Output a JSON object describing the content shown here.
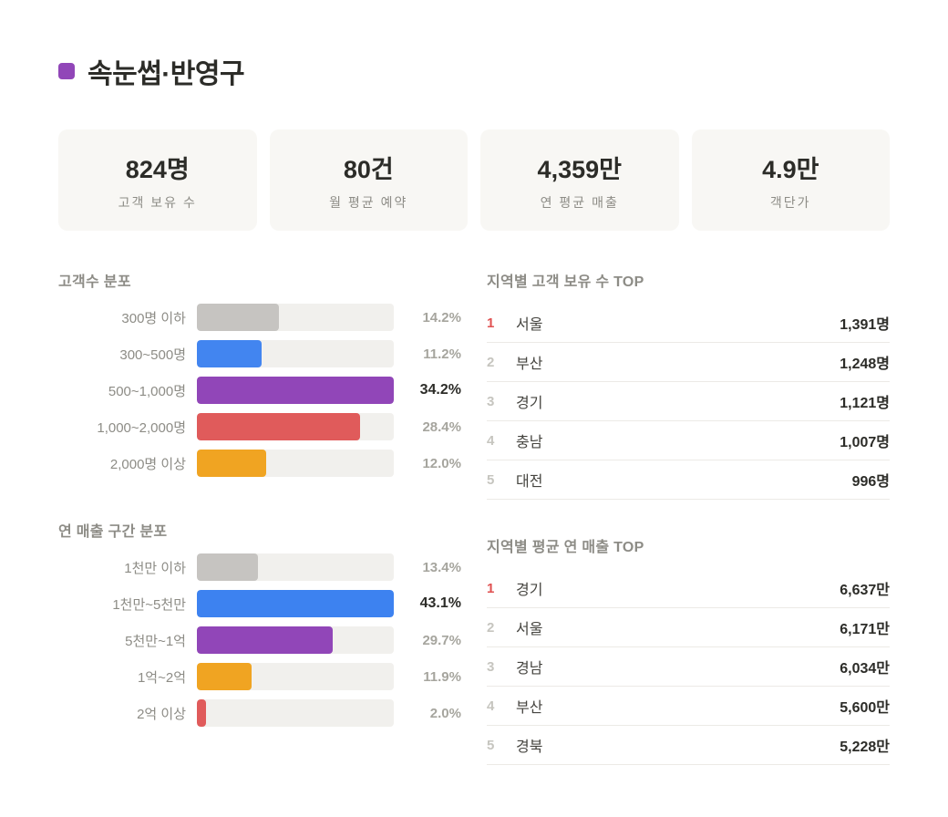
{
  "accent_color": "#9146b8",
  "header": {
    "title": "속눈썹·반영구"
  },
  "stats": [
    {
      "value": "824명",
      "label": "고객 보유 수"
    },
    {
      "value": "80건",
      "label": "월 평균 예약"
    },
    {
      "value": "4,359만",
      "label": "연 평균 매출"
    },
    {
      "value": "4.9만",
      "label": "객단가"
    }
  ],
  "chart_data": [
    {
      "type": "bar",
      "orientation": "horizontal",
      "title": "고객수 분포",
      "categories": [
        "300명 이하",
        "300~500명",
        "500~1,000명",
        "1,000~2,000명",
        "2,000명 이상"
      ],
      "values": [
        14.2,
        11.2,
        34.2,
        28.4,
        12.0
      ],
      "value_labels": [
        "14.2%",
        "11.2%",
        "34.2%",
        "28.4%",
        "12.0%"
      ],
      "colors": [
        "#c6c4c1",
        "#4285f0",
        "#9146b8",
        "#e05b5b",
        "#f0a422"
      ],
      "highlight_index": 2,
      "track_color": "#f1f0ed"
    },
    {
      "type": "bar",
      "orientation": "horizontal",
      "title": "연 매출 구간 분포",
      "categories": [
        "1천만 이하",
        "1천만~5천만",
        "5천만~1억",
        "1억~2억",
        "2억 이상"
      ],
      "values": [
        13.4,
        43.1,
        29.7,
        11.9,
        2.0
      ],
      "value_labels": [
        "13.4%",
        "43.1%",
        "29.7%",
        "11.9%",
        "2.0%"
      ],
      "colors": [
        "#c6c4c1",
        "#3d82f0",
        "#9146b8",
        "#f0a422",
        "#e05b5b"
      ],
      "highlight_index": 1,
      "track_color": "#f1f0ed"
    },
    {
      "type": "table",
      "title": "지역별 고객 보유 수 TOP",
      "rows": [
        {
          "rank": "1",
          "region": "서울",
          "value": "1,391명"
        },
        {
          "rank": "2",
          "region": "부산",
          "value": "1,248명"
        },
        {
          "rank": "3",
          "region": "경기",
          "value": "1,121명"
        },
        {
          "rank": "4",
          "region": "충남",
          "value": "1,007명"
        },
        {
          "rank": "5",
          "region": "대전",
          "value": "996명"
        }
      ]
    },
    {
      "type": "table",
      "title": "지역별 평균 연 매출 TOP",
      "rows": [
        {
          "rank": "1",
          "region": "경기",
          "value": "6,637만"
        },
        {
          "rank": "2",
          "region": "서울",
          "value": "6,171만"
        },
        {
          "rank": "3",
          "region": "경남",
          "value": "6,034만"
        },
        {
          "rank": "4",
          "region": "부산",
          "value": "5,600만"
        },
        {
          "rank": "5",
          "region": "경북",
          "value": "5,228만"
        }
      ]
    }
  ]
}
